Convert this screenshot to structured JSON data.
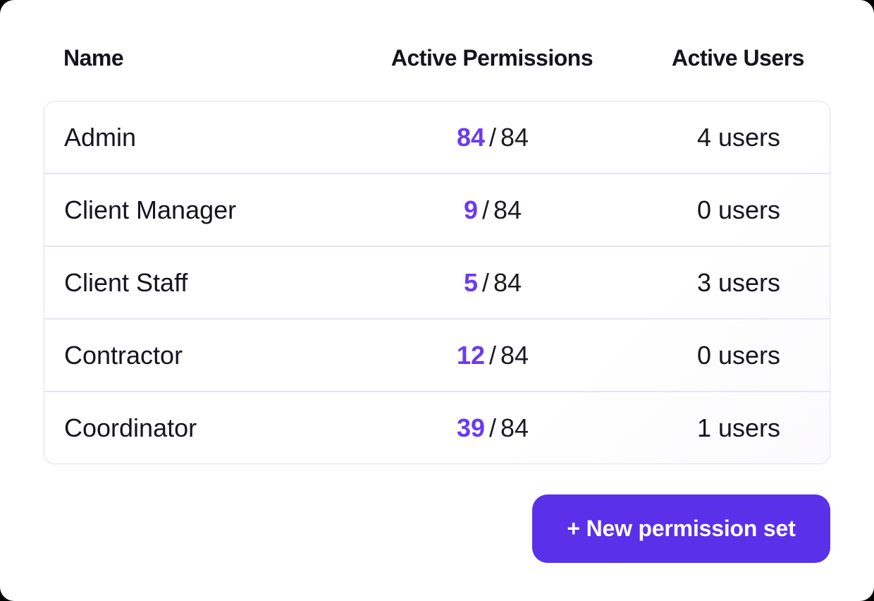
{
  "colors": {
    "page_background": "#000000",
    "card_background": "#ffffff",
    "accent_number": "#6b3bf2",
    "button_background": "#5a31e8",
    "text_dark": "#16141e",
    "row_separator": "#e7e5f2",
    "table_border": "#e5e3f0"
  },
  "table": {
    "columns": [
      "Name",
      "Active Permissions",
      "Active Users"
    ],
    "separator": "/",
    "rows": [
      {
        "name": "Admin",
        "active": "84",
        "total": "84",
        "users": "4 users"
      },
      {
        "name": "Client Manager",
        "active": "9",
        "total": "84",
        "users": "0 users"
      },
      {
        "name": "Client Staff",
        "active": "5",
        "total": "84",
        "users": "3 users"
      },
      {
        "name": "Contractor",
        "active": "12",
        "total": "84",
        "users": "0 users"
      },
      {
        "name": "Coordinator",
        "active": "39",
        "total": "84",
        "users": "1 users"
      }
    ]
  },
  "button": {
    "label": "+ New permission set"
  }
}
